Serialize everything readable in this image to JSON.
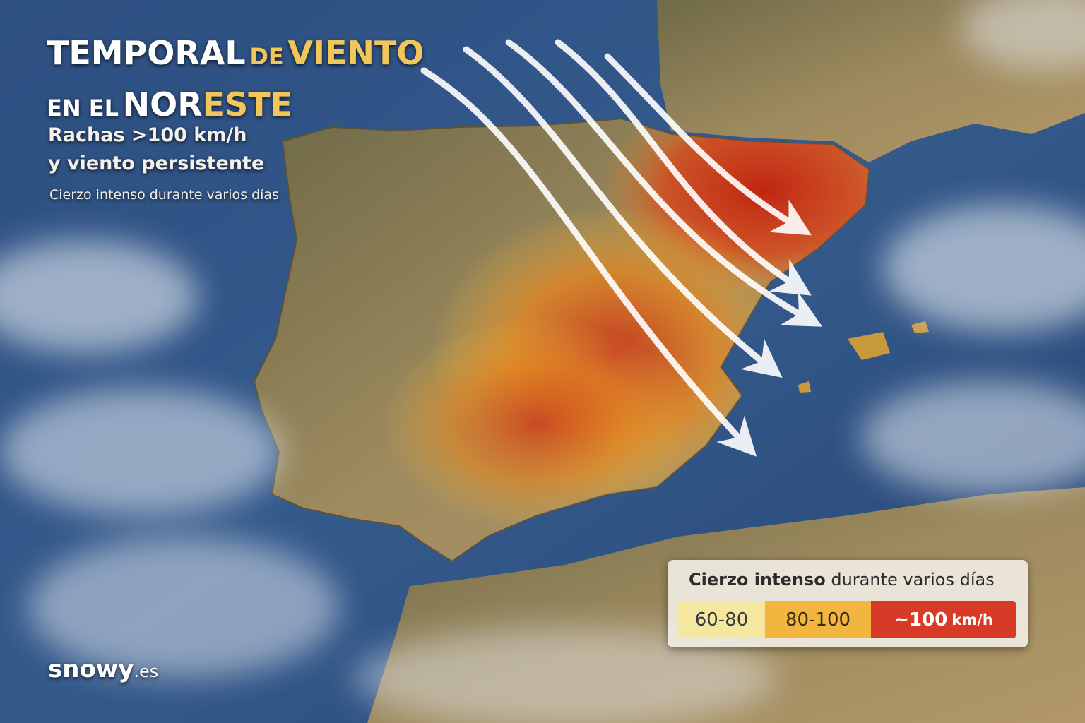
{
  "title": {
    "line1": [
      "TEMPORAL",
      "DE",
      "VIENTO"
    ],
    "line2": [
      "EN EL",
      "NOR",
      "ESTE"
    ]
  },
  "subtitle": [
    "Rachas >100 km/h",
    "y viento persistente"
  ],
  "tagline": "Cierzo intenso durante varios días",
  "brand": [
    "snowy",
    ".es"
  ],
  "legend": {
    "title": [
      "Cierzo intenso",
      "durante varios días"
    ],
    "items": [
      [
        "60-80"
      ],
      [
        "80-100"
      ],
      [
        "~100",
        "km/h"
      ]
    ]
  }
}
